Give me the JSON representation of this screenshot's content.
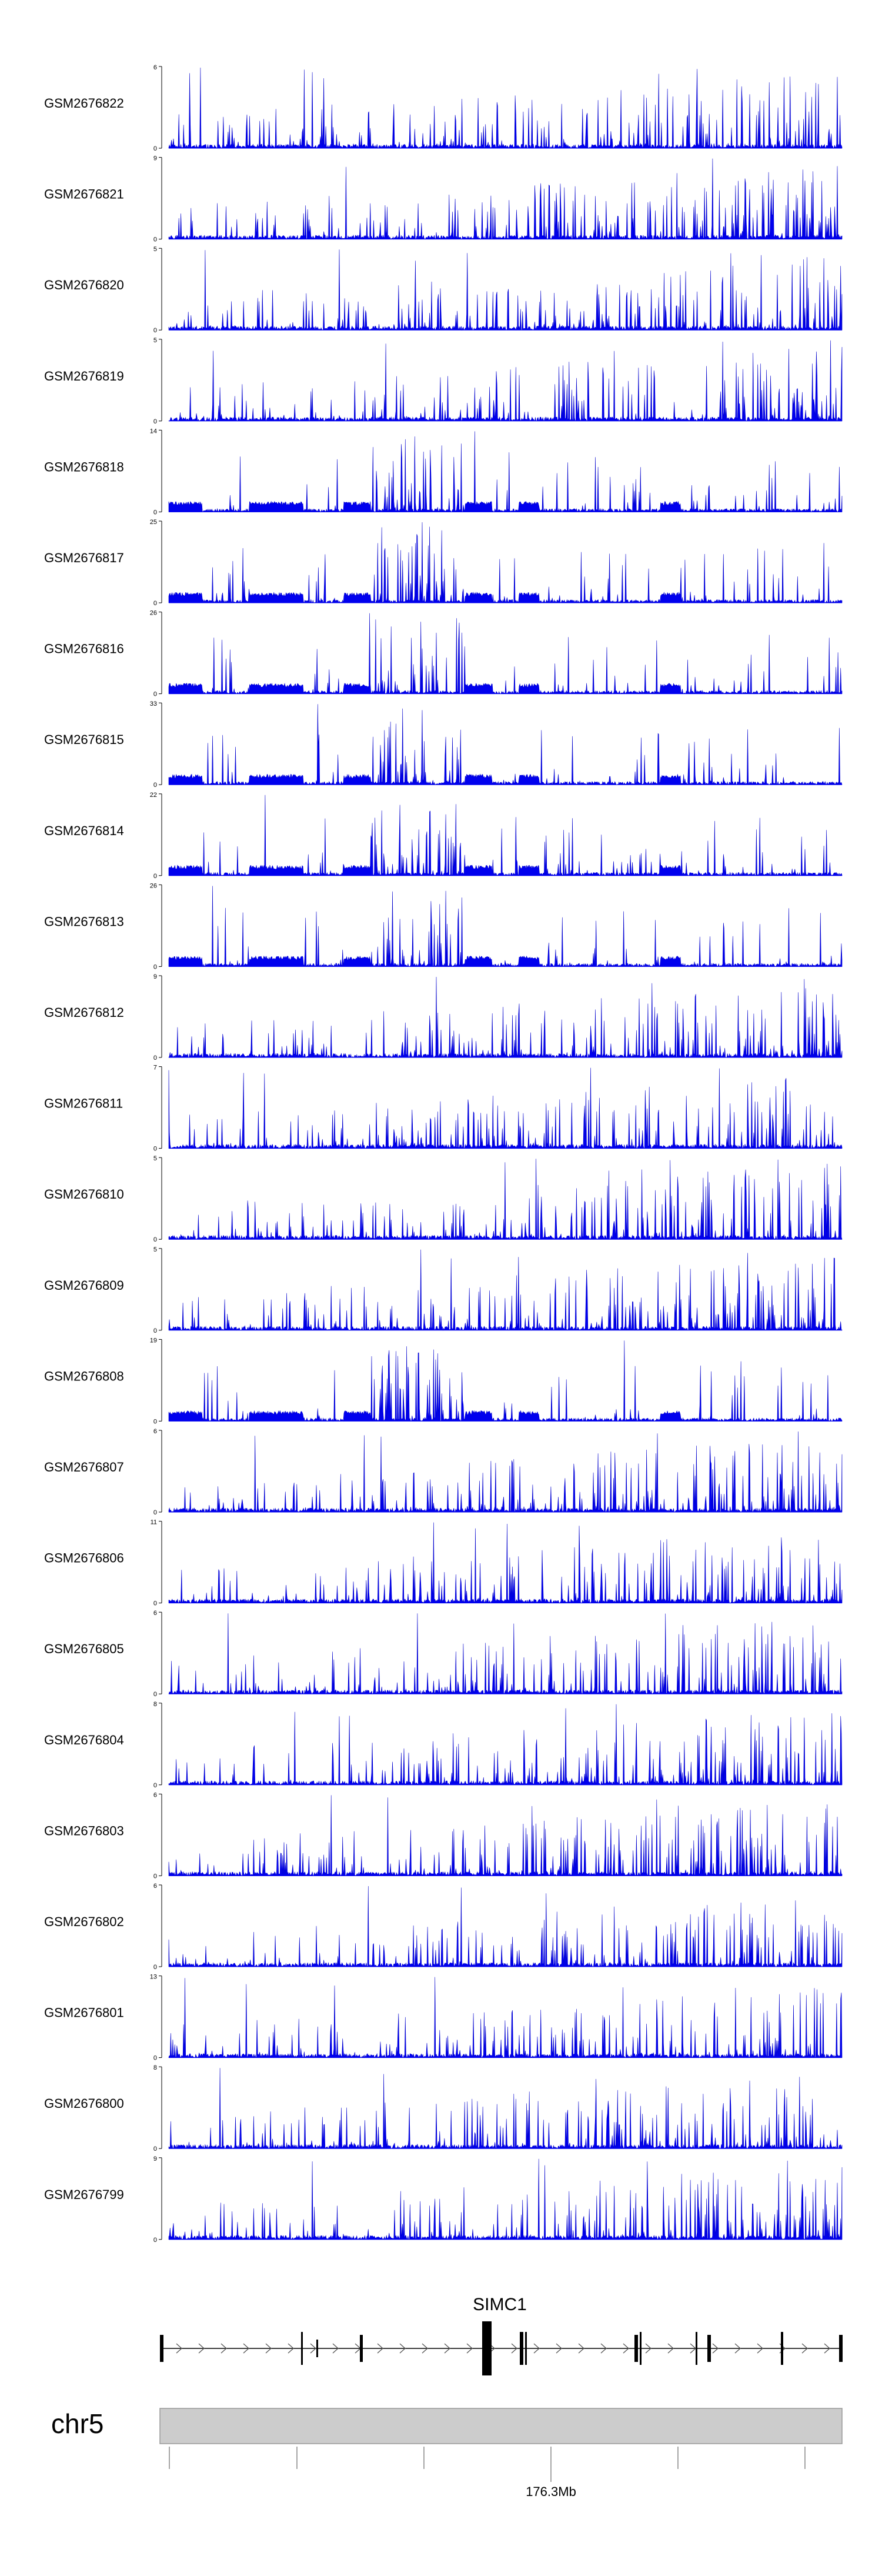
{
  "chart_data": {
    "type": "area",
    "title": "",
    "xlabel": "",
    "ylabel": "",
    "grid": false,
    "legend": "none",
    "color": "#0000ee",
    "series": [
      {
        "name": "GSM2676822",
        "ymin": "0",
        "ymax": "6"
      },
      {
        "name": "GSM2676821",
        "ymin": "0",
        "ymax": "9"
      },
      {
        "name": "GSM2676820",
        "ymin": "0",
        "ymax": "5"
      },
      {
        "name": "GSM2676819",
        "ymin": "0",
        "ymax": "5"
      },
      {
        "name": "GSM2676818",
        "ymin": "0",
        "ymax": "14"
      },
      {
        "name": "GSM2676817",
        "ymin": "0",
        "ymax": "25"
      },
      {
        "name": "GSM2676816",
        "ymin": "0",
        "ymax": "26"
      },
      {
        "name": "GSM2676815",
        "ymin": "0",
        "ymax": "33"
      },
      {
        "name": "GSM2676814",
        "ymin": "0",
        "ymax": "22"
      },
      {
        "name": "GSM2676813",
        "ymin": "0",
        "ymax": "26"
      },
      {
        "name": "GSM2676812",
        "ymin": "0",
        "ymax": "9"
      },
      {
        "name": "GSM2676811",
        "ymin": "0",
        "ymax": "7"
      },
      {
        "name": "GSM2676810",
        "ymin": "0",
        "ymax": "5"
      },
      {
        "name": "GSM2676809",
        "ymin": "0",
        "ymax": "5"
      },
      {
        "name": "GSM2676808",
        "ymin": "0",
        "ymax": "19"
      },
      {
        "name": "GSM2676807",
        "ymin": "0",
        "ymax": "6"
      },
      {
        "name": "GSM2676806",
        "ymin": "0",
        "ymax": "11"
      },
      {
        "name": "GSM2676805",
        "ymin": "0",
        "ymax": "6"
      },
      {
        "name": "GSM2676804",
        "ymin": "0",
        "ymax": "8"
      },
      {
        "name": "GSM2676803",
        "ymin": "0",
        "ymax": "6"
      },
      {
        "name": "GSM2676802",
        "ymin": "0",
        "ymax": "6"
      },
      {
        "name": "GSM2676801",
        "ymin": "0",
        "ymax": "13"
      },
      {
        "name": "GSM2676800",
        "ymin": "0",
        "ymax": "8"
      },
      {
        "name": "GSM2676799",
        "ymin": "0",
        "ymax": "9"
      }
    ],
    "gene": {
      "name": "SIMC1",
      "strand": "+"
    },
    "chromosome": "chr5",
    "coordinate_label": "176.3Mb"
  }
}
